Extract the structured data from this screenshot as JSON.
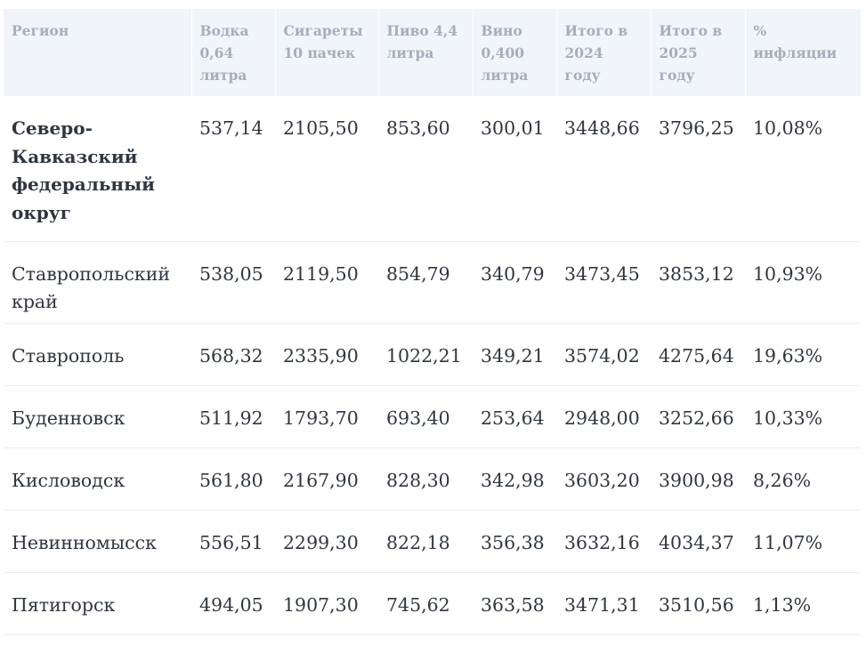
{
  "table": {
    "headers": [
      "Регион",
      "Водка 0,64 литра",
      "Сигареты 10 пачек",
      "Пиво 4,4 литра",
      "Вино 0,400 литра",
      "Итого в 2024 году",
      "Итого в 2025 году",
      "% инфляции"
    ],
    "rows": [
      [
        "Северо-Кавказский федеральный округ",
        "537,14",
        "2105,50",
        "853,60",
        "300,01",
        "3448,66",
        "3796,25",
        "10,08%"
      ],
      [
        "Ставропольский край",
        "538,05",
        "2119,50",
        "854,79",
        "340,79",
        "3473,45",
        "3853,12",
        "10,93%"
      ],
      [
        "Ставрополь",
        "568,32",
        "2335,90",
        "1022,21",
        "349,21",
        "3574,02",
        "4275,64",
        "19,63%"
      ],
      [
        "Буденновск",
        "511,92",
        "1793,70",
        "693,40",
        "253,64",
        "2948,00",
        "3252,66",
        "10,33%"
      ],
      [
        "Кисловодск",
        "561,80",
        "2167,90",
        "828,30",
        "342,98",
        "3603,20",
        "3900,98",
        "8,26%"
      ],
      [
        "Невинномысск",
        "556,51",
        "2299,30",
        "822,18",
        "356,38",
        "3632,16",
        "4034,37",
        "11,07%"
      ],
      [
        "Пятигорск",
        "494,05",
        "1907,30",
        "745,62",
        "363,58",
        "3471,31",
        "3510,56",
        "1,13%"
      ]
    ]
  }
}
